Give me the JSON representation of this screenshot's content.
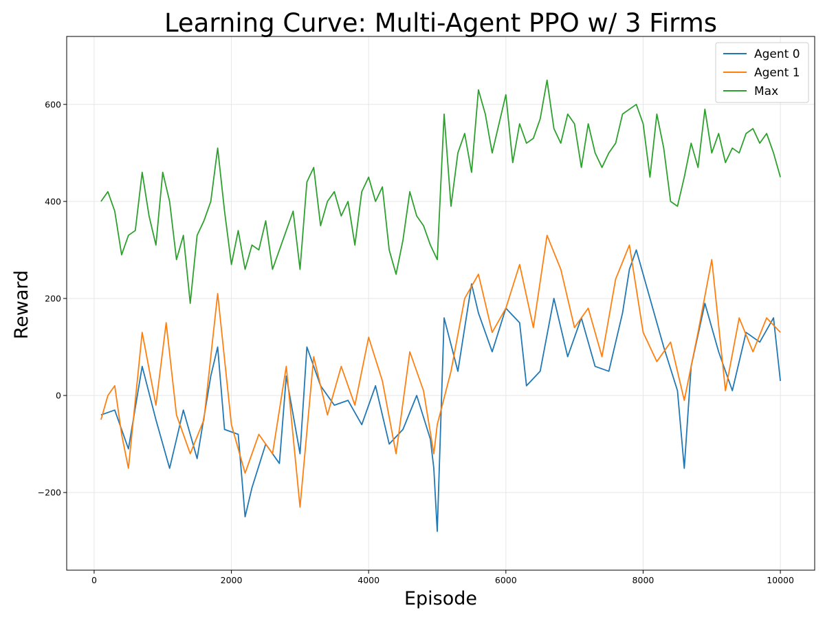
{
  "chart_data": {
    "type": "line",
    "title": "Learning Curve: Multi-Agent PPO w/ 3 Firms",
    "xlabel": "Episode",
    "ylabel": "Reward",
    "xlim": [
      -400,
      10500
    ],
    "ylim": [
      -360,
      740
    ],
    "xticks": [
      0,
      2000,
      4000,
      6000,
      8000,
      10000
    ],
    "xtick_labels": [
      "0",
      "2000",
      "4000",
      "6000",
      "8000",
      "10000"
    ],
    "yticks": [
      -200,
      0,
      200,
      400,
      600
    ],
    "ytick_labels": [
      "−200",
      "0",
      "200",
      "400",
      "600"
    ],
    "grid": true,
    "legend_position": "top-right",
    "series": [
      {
        "name": "Agent 0",
        "color": "#1f77b4",
        "x": [
          100,
          300,
          500,
          700,
          900,
          1100,
          1300,
          1500,
          1700,
          1800,
          1900,
          2100,
          2200,
          2300,
          2500,
          2700,
          2800,
          3000,
          3100,
          3300,
          3500,
          3700,
          3900,
          4100,
          4300,
          4500,
          4700,
          4900,
          4950,
          5000,
          5100,
          5300,
          5500,
          5600,
          5800,
          6000,
          6200,
          6300,
          6500,
          6700,
          6900,
          7100,
          7300,
          7500,
          7700,
          7800,
          7900,
          8100,
          8300,
          8500,
          8600,
          8700,
          8900,
          9100,
          9300,
          9500,
          9700,
          9900,
          10000
        ],
        "y": [
          -40,
          -30,
          -110,
          60,
          -50,
          -150,
          -30,
          -130,
          40,
          100,
          -70,
          -80,
          -250,
          -190,
          -100,
          -140,
          40,
          -120,
          100,
          20,
          -20,
          -10,
          -60,
          20,
          -100,
          -70,
          0,
          -90,
          -150,
          -280,
          160,
          50,
          230,
          170,
          90,
          180,
          150,
          20,
          50,
          200,
          80,
          160,
          60,
          50,
          170,
          260,
          300,
          200,
          100,
          10,
          -150,
          60,
          190,
          90,
          10,
          130,
          110,
          160,
          30
        ]
      },
      {
        "name": "Agent 1",
        "color": "#ff7f0e",
        "x": [
          100,
          200,
          300,
          400,
          500,
          700,
          900,
          1050,
          1200,
          1400,
          1600,
          1800,
          2000,
          2200,
          2400,
          2600,
          2800,
          3000,
          3200,
          3400,
          3600,
          3800,
          4000,
          4200,
          4400,
          4600,
          4800,
          4950,
          5000,
          5200,
          5400,
          5600,
          5800,
          6000,
          6200,
          6400,
          6600,
          6800,
          7000,
          7200,
          7400,
          7600,
          7800,
          8000,
          8200,
          8400,
          8600,
          8800,
          9000,
          9200,
          9400,
          9600,
          9800,
          10000
        ],
        "y": [
          -50,
          0,
          20,
          -80,
          -150,
          130,
          -20,
          150,
          -40,
          -120,
          -50,
          210,
          -60,
          -160,
          -80,
          -120,
          60,
          -230,
          80,
          -40,
          60,
          -20,
          120,
          30,
          -120,
          90,
          10,
          -120,
          -60,
          50,
          200,
          250,
          130,
          180,
          270,
          140,
          330,
          260,
          140,
          180,
          80,
          240,
          310,
          130,
          70,
          110,
          -10,
          130,
          280,
          10,
          160,
          90,
          160,
          130
        ]
      },
      {
        "name": "Max",
        "color": "#2ca02c",
        "x": [
          100,
          200,
          300,
          400,
          500,
          600,
          700,
          800,
          900,
          1000,
          1100,
          1200,
          1300,
          1400,
          1500,
          1600,
          1700,
          1800,
          1900,
          2000,
          2100,
          2200,
          2300,
          2400,
          2500,
          2600,
          2700,
          2800,
          2900,
          3000,
          3100,
          3200,
          3300,
          3400,
          3500,
          3600,
          3700,
          3800,
          3900,
          4000,
          4100,
          4200,
          4300,
          4400,
          4500,
          4600,
          4700,
          4800,
          4900,
          5000,
          5100,
          5200,
          5300,
          5400,
          5500,
          5600,
          5700,
          5800,
          5900,
          6000,
          6100,
          6200,
          6300,
          6400,
          6500,
          6600,
          6700,
          6800,
          6900,
          7000,
          7100,
          7200,
          7300,
          7400,
          7500,
          7600,
          7700,
          7800,
          7900,
          8000,
          8100,
          8200,
          8300,
          8400,
          8500,
          8600,
          8700,
          8800,
          8900,
          9000,
          9100,
          9200,
          9300,
          9400,
          9500,
          9600,
          9700,
          9800,
          9900,
          10000
        ],
        "y": [
          400,
          420,
          380,
          290,
          330,
          340,
          460,
          370,
          310,
          460,
          400,
          280,
          330,
          190,
          330,
          360,
          400,
          510,
          380,
          270,
          340,
          260,
          310,
          300,
          360,
          260,
          300,
          340,
          380,
          260,
          440,
          470,
          350,
          400,
          420,
          370,
          400,
          310,
          420,
          450,
          400,
          430,
          300,
          250,
          320,
          420,
          370,
          350,
          310,
          280,
          580,
          390,
          500,
          540,
          460,
          630,
          580,
          500,
          560,
          620,
          480,
          560,
          520,
          530,
          570,
          650,
          550,
          520,
          580,
          560,
          470,
          560,
          500,
          470,
          500,
          520,
          580,
          590,
          600,
          560,
          450,
          580,
          510,
          400,
          390,
          450,
          520,
          470,
          590,
          500,
          540,
          480,
          510,
          500,
          540,
          550,
          520,
          540,
          500,
          450
        ]
      }
    ]
  }
}
